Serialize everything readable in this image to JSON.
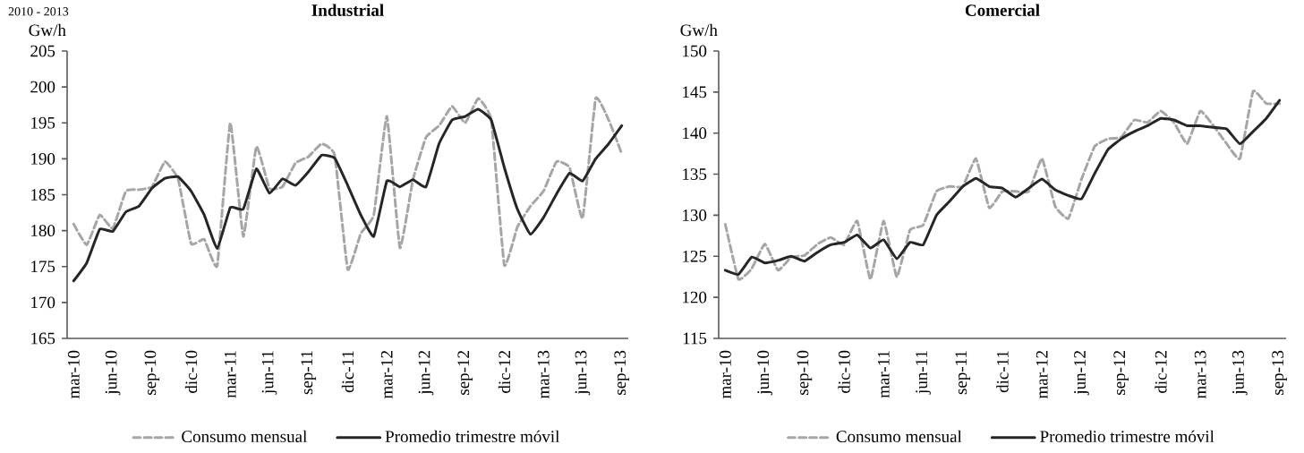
{
  "chart_data": [
    {
      "type": "line",
      "title": "Industrial",
      "ylabel": "Gw/h",
      "annotations": [
        "2010 - 2013"
      ],
      "categories": [
        "mar-10",
        null,
        null,
        "jun-10",
        null,
        null,
        "sep-10",
        null,
        null,
        "dic-10",
        null,
        null,
        "mar-11",
        null,
        null,
        "jun-11",
        null,
        null,
        "sep-11",
        null,
        null,
        "dic-11",
        null,
        null,
        "mar-12",
        null,
        null,
        "jun-12",
        null,
        null,
        "sep-12",
        null,
        null,
        "dic-12",
        null,
        null,
        "mar-13",
        null,
        null,
        "jun-13",
        null,
        null,
        "sep-13"
      ],
      "series": [
        {
          "name": "Consumo mensual",
          "color": "#a6a6a6",
          "line_style": "dashed",
          "values": [
            180.9,
            178.0,
            182.2,
            180.3,
            185.5,
            185.7,
            186.1,
            189.6,
            187.2,
            178.2,
            178.8,
            175.1,
            195.0,
            179.2,
            191.7,
            185.9,
            186.1,
            189.4,
            190.3,
            192.1,
            190.5,
            174.6,
            179.6,
            182.2,
            195.9,
            177.6,
            187.1,
            193.0,
            194.6,
            197.3,
            195.0,
            198.4,
            195.4,
            175.2,
            180.5,
            183.4,
            185.5,
            189.6,
            188.8,
            181.7,
            198.4,
            195.4,
            190.7
          ]
        },
        {
          "name": "Promedio trimestre móvil",
          "color": "#262626",
          "line_style": "solid",
          "values": [
            173.0,
            175.5,
            180.2,
            179.9,
            182.6,
            183.4,
            185.9,
            187.3,
            187.5,
            185.5,
            182.2,
            177.5,
            183.2,
            183.0,
            188.6,
            185.2,
            187.2,
            186.3,
            188.2,
            190.5,
            190.1,
            186.3,
            182.2,
            179.2,
            186.9,
            186.1,
            187.1,
            186.1,
            192.1,
            195.4,
            195.9,
            196.9,
            195.4,
            188.8,
            183.0,
            179.5,
            181.8,
            185.1,
            188.0,
            186.9,
            190.0,
            192.1,
            194.6
          ]
        }
      ],
      "ylim": [
        165,
        205
      ],
      "yticks": [
        165,
        170,
        175,
        180,
        185,
        190,
        195,
        200,
        205
      ],
      "legend": "bottom"
    },
    {
      "type": "line",
      "title": "Comercial",
      "ylabel": "Gw/h",
      "categories": [
        "mar-10",
        null,
        null,
        "jun-10",
        null,
        null,
        "sep-10",
        null,
        null,
        "dic-10",
        null,
        null,
        "mar-11",
        null,
        null,
        "jun-11",
        null,
        null,
        "sep-11",
        null,
        null,
        "dic-11",
        null,
        null,
        "mar-12",
        null,
        null,
        "jun-12",
        null,
        null,
        "sep-12",
        null,
        null,
        "dic-12",
        null,
        null,
        "mar-13",
        null,
        null,
        "jun-13",
        null,
        null,
        "sep-13"
      ],
      "series": [
        {
          "name": "Consumo mensual",
          "color": "#a6a6a6",
          "line_style": "dashed",
          "values": [
            128.9,
            122.2,
            123.5,
            126.5,
            123.3,
            124.9,
            125.1,
            126.5,
            127.3,
            126.4,
            129.3,
            122.2,
            129.3,
            122.5,
            128.2,
            128.8,
            132.9,
            133.5,
            133.5,
            136.9,
            130.9,
            132.9,
            132.9,
            132.9,
            136.9,
            131.1,
            129.6,
            134.4,
            138.4,
            139.3,
            139.5,
            141.6,
            141.3,
            142.7,
            141.3,
            138.7,
            142.7,
            140.9,
            138.7,
            136.9,
            145.1,
            143.6,
            143.6
          ]
        },
        {
          "name": "Promedio trimestre móvil",
          "color": "#262626",
          "line_style": "solid",
          "values": [
            123.3,
            122.8,
            124.9,
            124.2,
            124.5,
            125.0,
            124.4,
            125.5,
            126.4,
            126.7,
            127.6,
            126.0,
            127.0,
            124.7,
            126.7,
            126.4,
            130.0,
            131.7,
            133.5,
            134.5,
            133.5,
            133.3,
            132.2,
            133.3,
            134.4,
            133.1,
            132.4,
            132.0,
            135.1,
            138.0,
            139.3,
            140.2,
            140.9,
            141.8,
            141.6,
            140.9,
            140.9,
            140.7,
            140.5,
            138.7,
            140.2,
            141.8,
            144.0
          ]
        }
      ],
      "ylim": [
        115,
        150
      ],
      "yticks": [
        115,
        120,
        125,
        130,
        135,
        140,
        145,
        150
      ],
      "legend": "bottom"
    }
  ]
}
